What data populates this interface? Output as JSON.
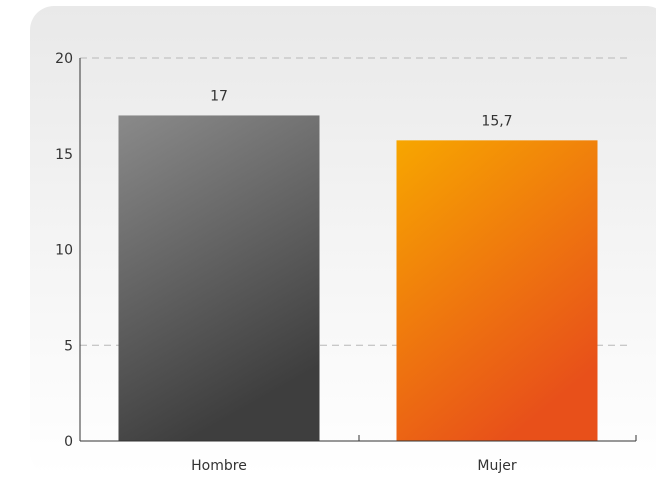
{
  "chart_data": {
    "type": "bar",
    "categories": [
      "Hombre",
      "Mujer"
    ],
    "values": [
      17,
      15.7
    ],
    "value_labels": [
      "17",
      "15,7"
    ],
    "title": "",
    "xlabel": "",
    "ylabel": "",
    "ylim": [
      0,
      20
    ],
    "yticks": [
      "0",
      "5",
      "10",
      "15",
      "20"
    ],
    "grid": "dashed lines at 5 and 20",
    "legend": "none",
    "colors": {
      "Hombre": [
        "#8a8a8a",
        "#3e3e3e"
      ],
      "Mujer": [
        "#f7a600",
        "#e8501a"
      ]
    }
  }
}
